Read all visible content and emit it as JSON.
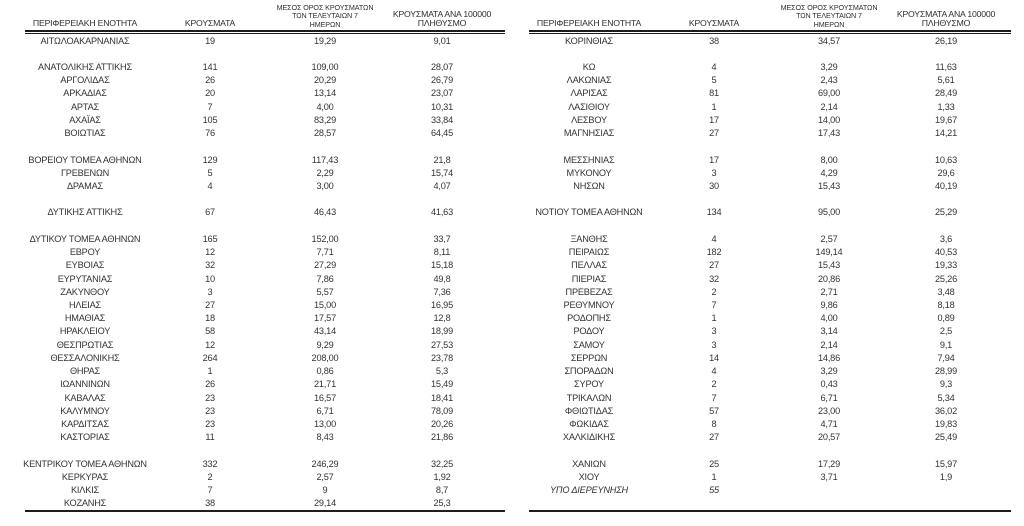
{
  "meta": {
    "language": "el",
    "text_color": "#333333",
    "line_color": "#1d1d1d",
    "background": "#ffffff"
  },
  "columns": {
    "region": "ΠΕΡΙΦΕΡΕΙΑΚΗ ΕΝΟΤΗΤΑ",
    "cases": "ΚΡΟΥΣΜΑΤΑ",
    "avg7_lines": [
      "ΜΕΣΟΣ ΟΡΟΣ ΚΡΟΥΣΜΑΤΩΝ",
      "ΤΩΝ ΤΕΛΕΥΤΑΙΩΝ 7",
      "ΗΜΕΡΩΝ"
    ],
    "per100k_lines": [
      "ΚΡΟΥΣΜΑΤΑ ΑΝΑ 100000",
      "ΠΛΗΘΥΣΜΟ"
    ]
  },
  "tables": [
    {
      "id": "left",
      "rows": [
        {
          "region": "ΑΙΤΩΛΟΑΚΑΡΝΑΝΙΑΣ",
          "cases": "19",
          "avg7": "19,29",
          "per100k": "9,01"
        },
        {
          "spacer": true
        },
        {
          "region": "ΑΝΑΤΟΛΙΚΗΣ ΑΤΤΙΚΗΣ",
          "cases": "141",
          "avg7": "109,00",
          "per100k": "28,07"
        },
        {
          "region": "ΑΡΓΟΛΙΔΑΣ",
          "cases": "26",
          "avg7": "20,29",
          "per100k": "26,79"
        },
        {
          "region": "ΑΡΚΑΔΙΑΣ",
          "cases": "20",
          "avg7": "13,14",
          "per100k": "23,07"
        },
        {
          "region": "ΑΡΤΑΣ",
          "cases": "7",
          "avg7": "4,00",
          "per100k": "10,31"
        },
        {
          "region": "ΑΧΑΪΑΣ",
          "cases": "105",
          "avg7": "83,29",
          "per100k": "33,84"
        },
        {
          "region": "ΒΟΙΩΤΙΑΣ",
          "cases": "76",
          "avg7": "28,57",
          "per100k": "64,45"
        },
        {
          "spacer": true
        },
        {
          "region": "ΒΟΡΕΙΟΥ ΤΟΜΕΑ ΑΘΗΝΩΝ",
          "cases": "129",
          "avg7": "117,43",
          "per100k": "21,8"
        },
        {
          "region": "ΓΡΕΒΕΝΩΝ",
          "cases": "5",
          "avg7": "2,29",
          "per100k": "15,74"
        },
        {
          "region": "ΔΡΑΜΑΣ",
          "cases": "4",
          "avg7": "3,00",
          "per100k": "4,07"
        },
        {
          "spacer": true
        },
        {
          "region": "ΔΥΤΙΚΗΣ ΑΤΤΙΚΗΣ",
          "cases": "67",
          "avg7": "46,43",
          "per100k": "41,63"
        },
        {
          "spacer": true
        },
        {
          "region": "ΔΥΤΙΚΟΥ ΤΟΜΕΑ ΑΘΗΝΩΝ",
          "cases": "165",
          "avg7": "152,00",
          "per100k": "33,7"
        },
        {
          "region": "ΕΒΡΟΥ",
          "cases": "12",
          "avg7": "7,71",
          "per100k": "8,11"
        },
        {
          "region": "ΕΥΒΟΙΑΣ",
          "cases": "32",
          "avg7": "27,29",
          "per100k": "15,18"
        },
        {
          "region": "ΕΥΡΥΤΑΝΙΑΣ",
          "cases": "10",
          "avg7": "7,86",
          "per100k": "49,8"
        },
        {
          "region": "ΖΑΚΥΝΘΟΥ",
          "cases": "3",
          "avg7": "5,57",
          "per100k": "7,36"
        },
        {
          "region": "ΗΛΕΙΑΣ",
          "cases": "27",
          "avg7": "15,00",
          "per100k": "16,95"
        },
        {
          "region": "ΗΜΑΘΙΑΣ",
          "cases": "18",
          "avg7": "17,57",
          "per100k": "12,8"
        },
        {
          "region": "ΗΡΑΚΛΕΙΟΥ",
          "cases": "58",
          "avg7": "43,14",
          "per100k": "18,99"
        },
        {
          "region": "ΘΕΣΠΡΩΤΙΑΣ",
          "cases": "12",
          "avg7": "9,29",
          "per100k": "27,53"
        },
        {
          "region": "ΘΕΣΣΑΛΟΝΙΚΗΣ",
          "cases": "264",
          "avg7": "208,00",
          "per100k": "23,78"
        },
        {
          "region": "ΘΗΡΑΣ",
          "cases": "1",
          "avg7": "0,86",
          "per100k": "5,3"
        },
        {
          "region": "ΙΩΑΝΝΙΝΩΝ",
          "cases": "26",
          "avg7": "21,71",
          "per100k": "15,49"
        },
        {
          "region": "ΚΑΒΑΛΑΣ",
          "cases": "23",
          "avg7": "16,57",
          "per100k": "18,41"
        },
        {
          "region": "ΚΑΛΥΜΝΟΥ",
          "cases": "23",
          "avg7": "6,71",
          "per100k": "78,09"
        },
        {
          "region": "ΚΑΡΔΙΤΣΑΣ",
          "cases": "23",
          "avg7": "13,00",
          "per100k": "20,26"
        },
        {
          "region": "ΚΑΣΤΟΡΙΑΣ",
          "cases": "11",
          "avg7": "8,43",
          "per100k": "21,86"
        },
        {
          "spacer": true
        },
        {
          "region": "ΚΕΝΤΡΙΚΟΥ ΤΟΜΕΑ ΑΘΗΝΩΝ",
          "cases": "332",
          "avg7": "246,29",
          "per100k": "32,25"
        },
        {
          "region": "ΚΕΡΚΥΡΑΣ",
          "cases": "2",
          "avg7": "2,57",
          "per100k": "1,92"
        },
        {
          "region": "ΚΙΛΚΙΣ",
          "cases": "7",
          "avg7": "9",
          "per100k": "8,7"
        },
        {
          "region": "ΚΟΖΑΝΗΣ",
          "cases": "38",
          "avg7": "29,14",
          "per100k": "25,3"
        }
      ]
    },
    {
      "id": "right",
      "rows": [
        {
          "region": "ΚΟΡΙΝΘΙΑΣ",
          "cases": "38",
          "avg7": "34,57",
          "per100k": "26,19"
        },
        {
          "spacer": true
        },
        {
          "region": "ΚΩ",
          "cases": "4",
          "avg7": "3,29",
          "per100k": "11,63"
        },
        {
          "region": "ΛΑΚΩΝΙΑΣ",
          "cases": "5",
          "avg7": "2,43",
          "per100k": "5,61"
        },
        {
          "region": "ΛΑΡΙΣΑΣ",
          "cases": "81",
          "avg7": "69,00",
          "per100k": "28,49"
        },
        {
          "region": "ΛΑΣΙΘΙΟΥ",
          "cases": "1",
          "avg7": "2,14",
          "per100k": "1,33"
        },
        {
          "region": "ΛΕΣΒΟΥ",
          "cases": "17",
          "avg7": "14,00",
          "per100k": "19,67"
        },
        {
          "region": "ΜΑΓΝΗΣΙΑΣ",
          "cases": "27",
          "avg7": "17,43",
          "per100k": "14,21"
        },
        {
          "spacer": true
        },
        {
          "region": "ΜΕΣΣΗΝΙΑΣ",
          "cases": "17",
          "avg7": "8,00",
          "per100k": "10,63"
        },
        {
          "region": "ΜΥΚΟΝΟΥ",
          "cases": "3",
          "avg7": "4,29",
          "per100k": "29,6"
        },
        {
          "region": "ΝΗΣΩΝ",
          "cases": "30",
          "avg7": "15,43",
          "per100k": "40,19"
        },
        {
          "spacer": true
        },
        {
          "region": "ΝΟΤΙΟΥ ΤΟΜΕΑ ΑΘΗΝΩΝ",
          "cases": "134",
          "avg7": "95,00",
          "per100k": "25,29"
        },
        {
          "spacer": true
        },
        {
          "region": "ΞΑΝΘΗΣ",
          "cases": "4",
          "avg7": "2,57",
          "per100k": "3,6"
        },
        {
          "region": "ΠΕΙΡΑΙΩΣ",
          "cases": "182",
          "avg7": "149,14",
          "per100k": "40,53"
        },
        {
          "region": "ΠΕΛΛΑΣ",
          "cases": "27",
          "avg7": "15,43",
          "per100k": "19,33"
        },
        {
          "region": "ΠΙΕΡΙΑΣ",
          "cases": "32",
          "avg7": "20,86",
          "per100k": "25,26"
        },
        {
          "region": "ΠΡΕΒΕΖΑΣ",
          "cases": "2",
          "avg7": "2,71",
          "per100k": "3,48"
        },
        {
          "region": "ΡΕΘΥΜΝΟΥ",
          "cases": "7",
          "avg7": "9,86",
          "per100k": "8,18"
        },
        {
          "region": "ΡΟΔΟΠΗΣ",
          "cases": "1",
          "avg7": "4,00",
          "per100k": "0,89"
        },
        {
          "region": "ΡΟΔΟΥ",
          "cases": "3",
          "avg7": "3,14",
          "per100k": "2,5"
        },
        {
          "region": "ΣΑΜΟΥ",
          "cases": "3",
          "avg7": "2,14",
          "per100k": "9,1"
        },
        {
          "region": "ΣΕΡΡΩΝ",
          "cases": "14",
          "avg7": "14,86",
          "per100k": "7,94"
        },
        {
          "region": "ΣΠΟΡΑΔΩΝ",
          "cases": "4",
          "avg7": "3,29",
          "per100k": "28,99"
        },
        {
          "region": "ΣΥΡΟΥ",
          "cases": "2",
          "avg7": "0,43",
          "per100k": "9,3"
        },
        {
          "region": "ΤΡΙΚΑΛΩΝ",
          "cases": "7",
          "avg7": "6,71",
          "per100k": "5,34"
        },
        {
          "region": "ΦΘΙΩΤΙΔΑΣ",
          "cases": "57",
          "avg7": "23,00",
          "per100k": "36,02"
        },
        {
          "region": "ΦΩΚΙΔΑΣ",
          "cases": "8",
          "avg7": "4,71",
          "per100k": "19,83"
        },
        {
          "region": "ΧΑΛΚΙΔΙΚΗΣ",
          "cases": "27",
          "avg7": "20,57",
          "per100k": "25,49"
        },
        {
          "spacer": true
        },
        {
          "region": "ΧΑΝΙΩΝ",
          "cases": "25",
          "avg7": "17,29",
          "per100k": "15,97"
        },
        {
          "region": "ΧΙΟΥ",
          "cases": "1",
          "avg7": "3,71",
          "per100k": "1,9"
        },
        {
          "region": "ΥΠΟ ΔΙΕΡΕΥΝΗΣΗ",
          "cases": "55",
          "avg7": "",
          "per100k": "",
          "italic": true
        },
        {
          "spacer": true
        }
      ]
    }
  ]
}
